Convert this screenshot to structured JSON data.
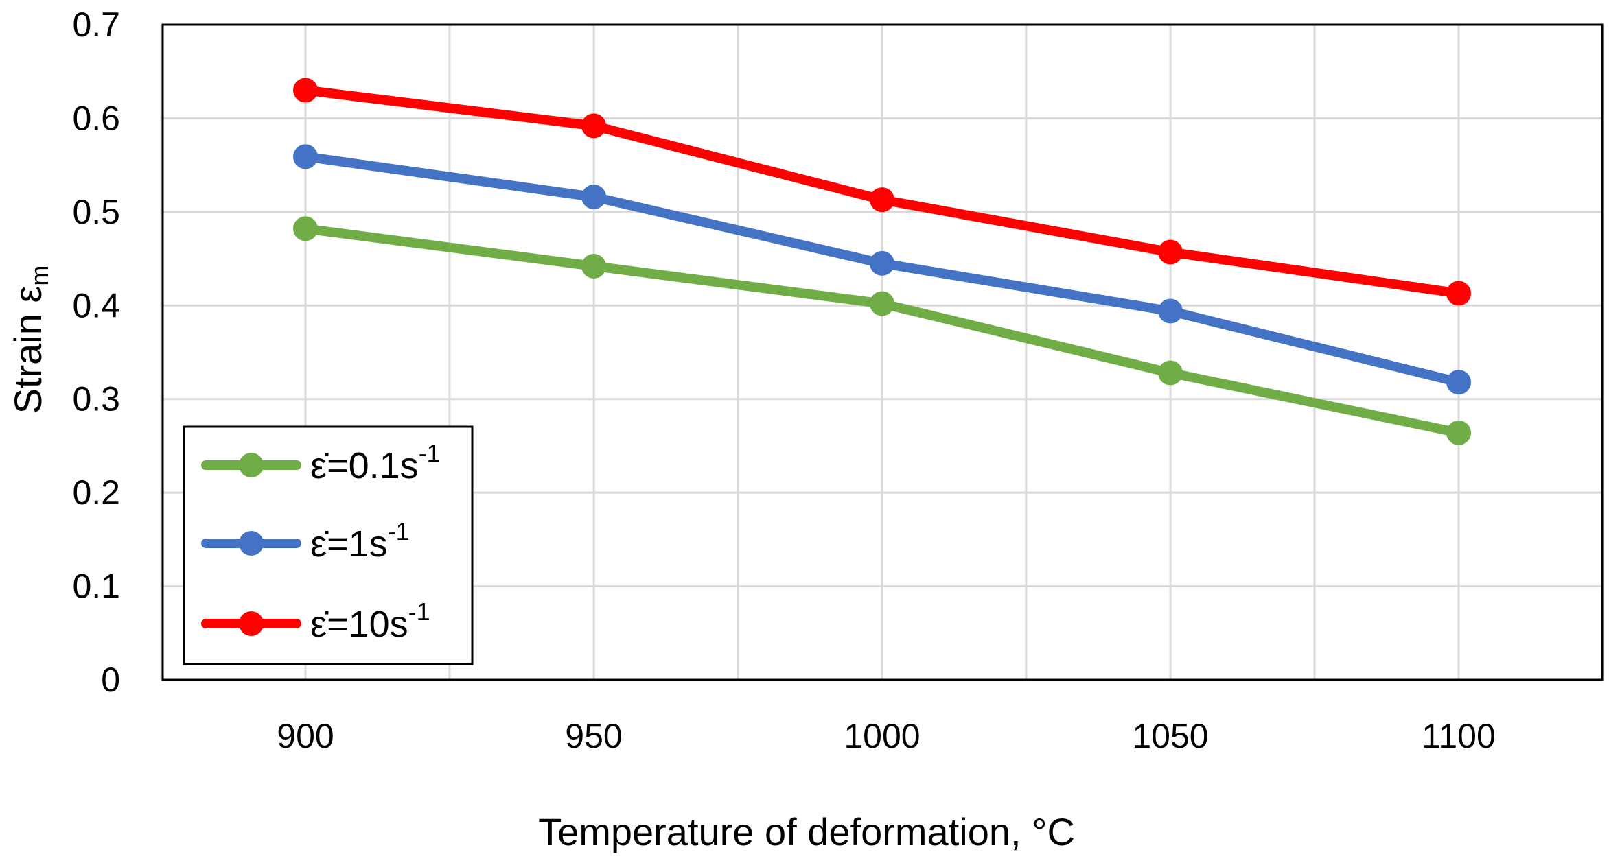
{
  "chart_data": {
    "type": "line",
    "title": "",
    "xlabel": "Temperature of deformation, °C",
    "ylabel": "Strain ε",
    "ylabel_subscript": "m",
    "x": [
      900,
      950,
      1000,
      1050,
      1100
    ],
    "x_tick_labels": [
      "900",
      "950",
      "1000",
      "1050",
      "1100"
    ],
    "ylim": [
      0,
      0.7
    ],
    "y_ticks": [
      0,
      0.1,
      0.2,
      0.3,
      0.4,
      0.5,
      0.6,
      0.7
    ],
    "y_tick_labels": [
      "0",
      "0.1",
      "0.2",
      "0.3",
      "0.4",
      "0.5",
      "0.6",
      "0.7"
    ],
    "grid": true,
    "legend_position": "bottom-left",
    "series": [
      {
        "name": "ε̇=0.1s-1",
        "label_main": "ε̇=0.1s",
        "label_sup": "-1",
        "color": "#70ad47",
        "values": [
          0.482,
          0.442,
          0.402,
          0.328,
          0.264
        ]
      },
      {
        "name": "ε̇=1s-1",
        "label_main": "ε̇=1s",
        "label_sup": "-1",
        "color": "#4472c4",
        "values": [
          0.559,
          0.516,
          0.445,
          0.394,
          0.318
        ]
      },
      {
        "name": "ε̇=10s-1",
        "label_main": "ε̇=10s",
        "label_sup": "-1",
        "color": "#ff0000",
        "values": [
          0.63,
          0.592,
          0.513,
          0.457,
          0.413
        ]
      }
    ]
  }
}
